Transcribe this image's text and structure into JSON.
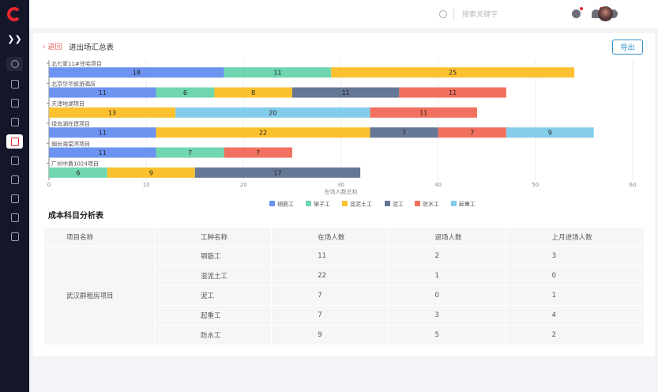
{
  "header": {
    "search_placeholder": "搜索关键字"
  },
  "page": {
    "back_label": "返回",
    "title": "进出场汇总表",
    "export_label": "导出"
  },
  "chart_data": {
    "type": "bar",
    "orientation": "horizontal",
    "stacked": true,
    "xlabel": "在场人数总和",
    "xlim": [
      0,
      60
    ],
    "xticks": [
      0,
      10,
      20,
      30,
      40,
      50,
      60
    ],
    "grid": true,
    "legend": "bottom",
    "series": [
      {
        "name": "钢筋工",
        "color": "#6c93f0"
      },
      {
        "name": "架子工",
        "color": "#6fd6b0"
      },
      {
        "name": "混泥土工",
        "color": "#fbc12e"
      },
      {
        "name": "泥工",
        "color": "#657795"
      },
      {
        "name": "防水工",
        "color": "#f2705f"
      },
      {
        "name": "起重工",
        "color": "#84cdea"
      }
    ],
    "projects": [
      {
        "name": "北七家11#住宅项目",
        "segments": [
          {
            "series": "钢筋工",
            "value": 18
          },
          {
            "series": "架子工",
            "value": 11
          },
          {
            "series": "混泥土工",
            "value": 25
          }
        ]
      },
      {
        "name": "北京华华旅游酒店",
        "segments": [
          {
            "series": "钢筋工",
            "value": 11
          },
          {
            "series": "架子工",
            "value": 6
          },
          {
            "series": "混泥土工",
            "value": 8
          },
          {
            "series": "泥工",
            "value": 11
          },
          {
            "series": "防水工",
            "value": 11
          }
        ]
      },
      {
        "name": "天津地湖项目",
        "segments": [
          {
            "series": "混泥土工",
            "value": 13
          },
          {
            "series": "起重工",
            "value": 20
          },
          {
            "series": "防水工",
            "value": 11
          }
        ]
      },
      {
        "name": "绿岛湖在建项目",
        "segments": [
          {
            "series": "钢筋工",
            "value": 11
          },
          {
            "series": "混泥土工",
            "value": 22
          },
          {
            "series": "泥工",
            "value": 7
          },
          {
            "series": "防水工",
            "value": 7
          },
          {
            "series": "起重工",
            "value": 9
          }
        ]
      },
      {
        "name": "烟台海棠湾项目",
        "segments": [
          {
            "series": "钢筋工",
            "value": 11
          },
          {
            "series": "架子工",
            "value": 7
          },
          {
            "series": "防水工",
            "value": 7
          }
        ]
      },
      {
        "name": "广州中盾1024项目",
        "segments": [
          {
            "series": "架子工",
            "value": 6
          },
          {
            "series": "混泥土工",
            "value": 9
          },
          {
            "series": "泥工",
            "value": 17
          }
        ]
      }
    ]
  },
  "table": {
    "title": "成本科目分析表",
    "headers": [
      "项目名称",
      "工种名称",
      "在场人数",
      "退场人数",
      "上月进场人数"
    ],
    "project": "武汉群租房项目",
    "rows": [
      [
        "钢筋工",
        "11",
        "2",
        "3"
      ],
      [
        "混泥土工",
        "22",
        "1",
        "0"
      ],
      [
        "泥工",
        "7",
        "0",
        "1"
      ],
      [
        "起重工",
        "7",
        "3",
        "4"
      ],
      [
        "防水工",
        "9",
        "5",
        "2"
      ]
    ]
  }
}
